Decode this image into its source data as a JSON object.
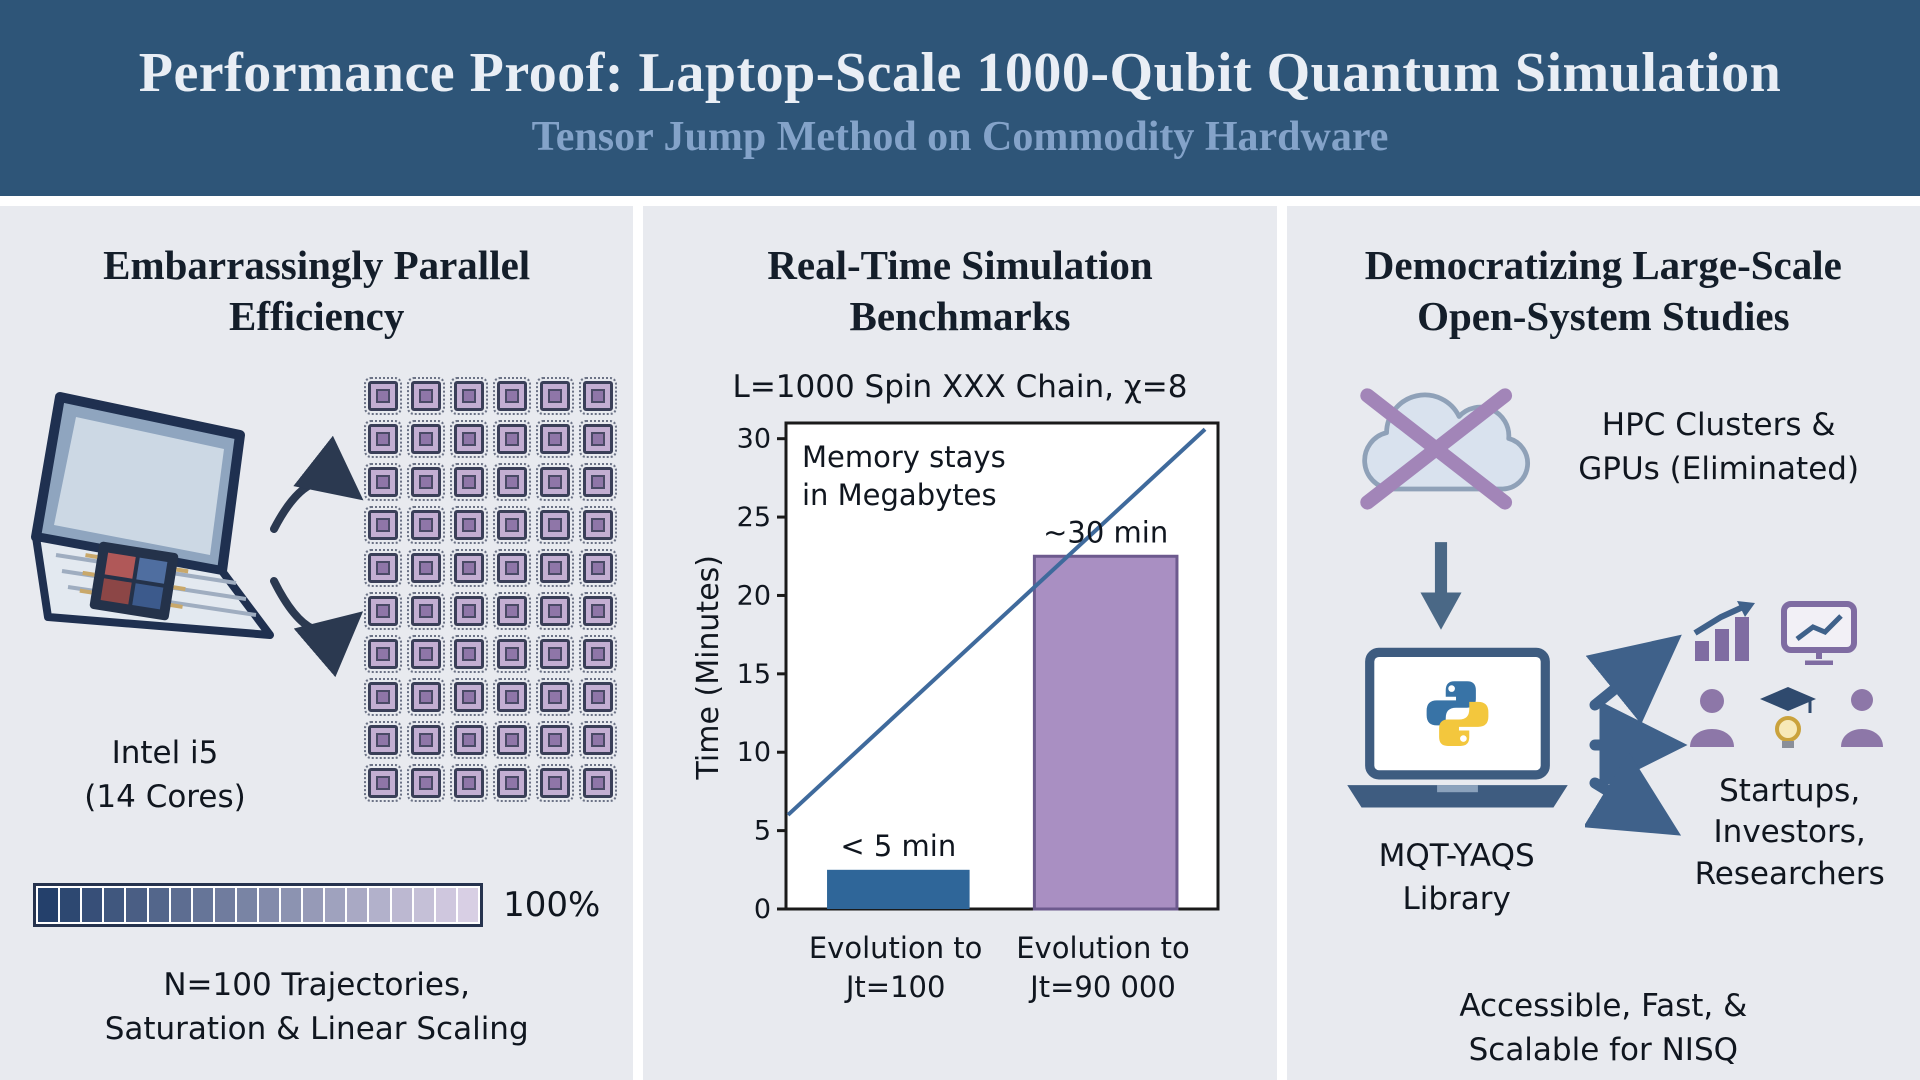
{
  "header": {
    "title": "Performance Proof: Laptop-Scale 1000-Qubit Quantum Simulation",
    "subtitle": "Tensor Jump Method on Commodity Hardware"
  },
  "panel_parallel": {
    "heading": "Embarrassingly Parallel\nEfficiency",
    "cpu_label": "Intel i5\n(14 Cores)",
    "progress_percent_label": "100%",
    "caption": "N=100 Trajectories,\nSaturation & Linear Scaling",
    "chip_grid": {
      "rows": 10,
      "cols": 6
    },
    "progress": {
      "segments": 20,
      "value_percent": 100,
      "start_color": "#24406b",
      "end_color": "#d8cfe4"
    }
  },
  "panel_benchmarks": {
    "heading": "Real-Time Simulation\nBenchmarks"
  },
  "chart_data": {
    "type": "bar",
    "title": "L=1000 Spin XXX Chain, χ=8",
    "ylabel": "Time (Minutes)",
    "ylim": [
      0,
      31
    ],
    "yticks": [
      0,
      5,
      10,
      15,
      20,
      25,
      30
    ],
    "categories": [
      "Evolution to\nJt=100",
      "Evolution to\nJt=90 000"
    ],
    "values": [
      2.5,
      22.5
    ],
    "bar_labels": [
      "< 5 min",
      "~30 min"
    ],
    "bar_colors": [
      "#2f6699",
      "#a98fc2"
    ],
    "bar_edge_colors": [
      "#2f6699",
      "#6d5a8e"
    ],
    "annotation": "Memory stays\nin Megabytes",
    "line_overlay": {
      "from_value": 6,
      "to_value": 30.6,
      "x_span": [
        0,
        0.97
      ],
      "color": "#3f6a9c"
    },
    "grid": false,
    "legend": null
  },
  "panel_democratize": {
    "heading": "Democratizing Large-Scale\nOpen-System Studies",
    "hpc_label": "HPC Clusters &\nGPUs (Eliminated)",
    "library_label": "MQT-YAQS\nLibrary",
    "audience_label": "Startups,\nInvestors,\nResearchers",
    "caption": "Accessible, Fast, &\nScalable for NISQ"
  },
  "colors": {
    "header_bg": "#2e5578",
    "header_title": "#e9eef5",
    "header_subtitle": "#84a3c9",
    "panel_bg": "#e8eaef",
    "chip_fill": "#8f76a8",
    "arrow": "#2b3950",
    "text": "#10161f"
  }
}
